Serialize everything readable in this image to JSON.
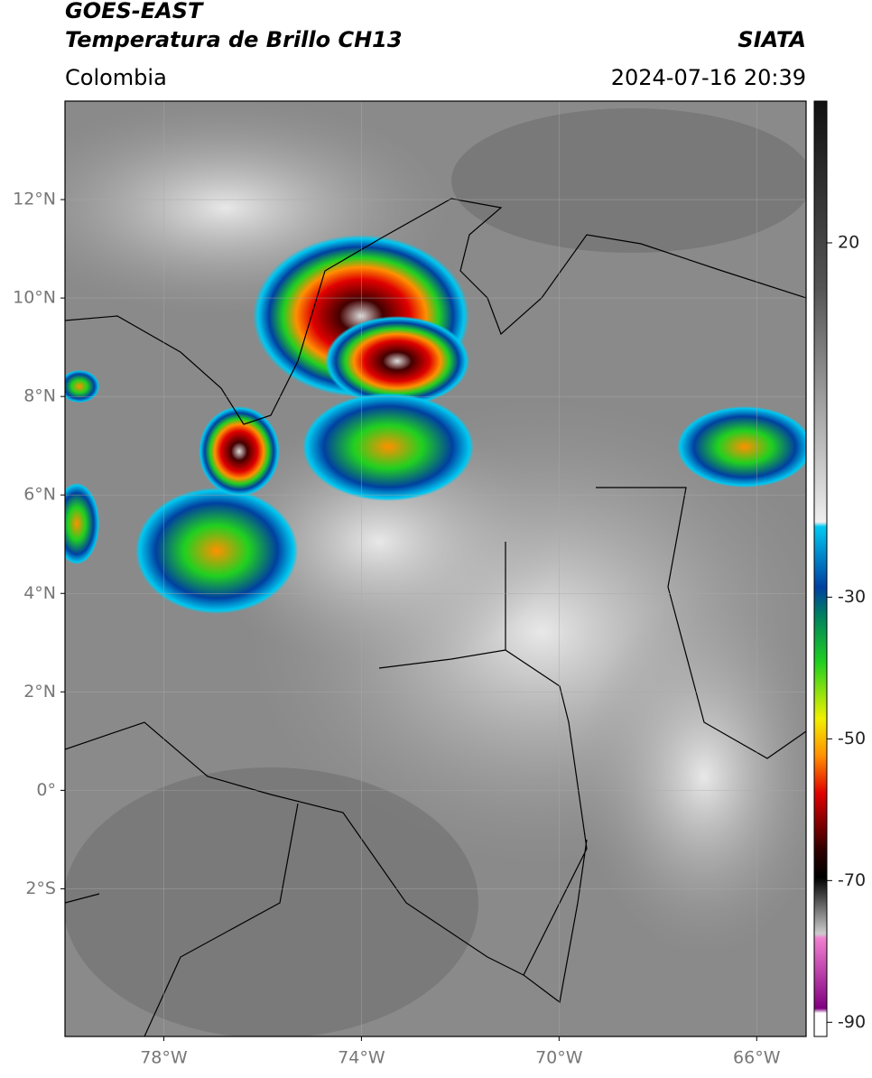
{
  "header": {
    "title": "GOES-EAST",
    "subtitle": "Temperatura de Brillo CH13",
    "source": "SIATA",
    "region": "Colombia",
    "datetime": "2024-07-16 20:39"
  },
  "map": {
    "xlim": [
      -80,
      -65
    ],
    "ylim": [
      -5,
      14
    ],
    "xticks": [
      {
        "value": -78,
        "label": "78°W"
      },
      {
        "value": -74,
        "label": "74°W"
      },
      {
        "value": -70,
        "label": "70°W"
      },
      {
        "value": -66,
        "label": "66°W"
      }
    ],
    "yticks": [
      {
        "value": 12,
        "label": "12°N"
      },
      {
        "value": 10,
        "label": "10°N"
      },
      {
        "value": 8,
        "label": "8°N"
      },
      {
        "value": 6,
        "label": "6°N"
      },
      {
        "value": 4,
        "label": "4°N"
      },
      {
        "value": 2,
        "label": "2°N"
      },
      {
        "value": 0,
        "label": "0°"
      },
      {
        "value": -2,
        "label": "2°S"
      }
    ]
  },
  "colorbar": {
    "lim": [
      -92,
      40
    ],
    "ticks": [
      20,
      -30,
      -50,
      -70,
      -90
    ]
  }
}
